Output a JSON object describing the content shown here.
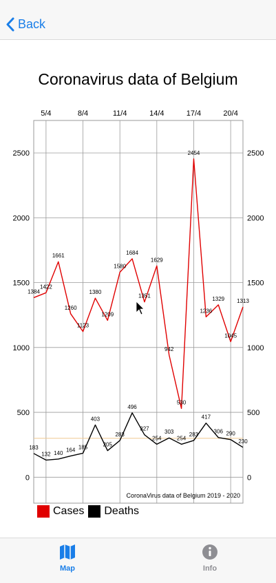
{
  "nav": {
    "back_label": "Back"
  },
  "tabs": [
    {
      "label": "Map",
      "icon": "map-icon",
      "active": true,
      "color": "#1a7ee8"
    },
    {
      "label": "Info",
      "icon": "info-icon",
      "active": false,
      "color": "#8e8e93"
    }
  ],
  "chart_data": {
    "type": "line",
    "title": "Coronavirus data of Belgium",
    "description": "CoronaVirus data of Belgium 2019 - 2020",
    "x": [
      "4/4",
      "5/4",
      "6/4",
      "7/4",
      "8/4",
      "9/4",
      "10/4",
      "11/4",
      "12/4",
      "13/4",
      "14/4",
      "15/4",
      "16/4",
      "17/4",
      "18/4",
      "19/4",
      "20/4",
      "21/4"
    ],
    "x_tick_labels": [
      "5/4",
      "8/4",
      "11/4",
      "14/4",
      "17/4",
      "20/4"
    ],
    "ylim": [
      -200,
      2750
    ],
    "y_ticks": [
      0,
      500,
      1000,
      1500,
      2000,
      2500
    ],
    "grid": true,
    "legend_position": "bottom-left",
    "limit_line": 300,
    "series": [
      {
        "name": "Cases",
        "color": "#e00000",
        "values": [
          1384,
          1422,
          1661,
          1260,
          1123,
          1380,
          1209,
          1580,
          1684,
          1351,
          1629,
          942,
          530,
          2454,
          1236,
          1329,
          1045,
          1313
        ]
      },
      {
        "name": "Deaths",
        "color": "#000000",
        "values": [
          183,
          132,
          140,
          164,
          185,
          403,
          205,
          283,
          496,
          327,
          254,
          303,
          254,
          283,
          417,
          306,
          290,
          230
        ]
      }
    ]
  }
}
